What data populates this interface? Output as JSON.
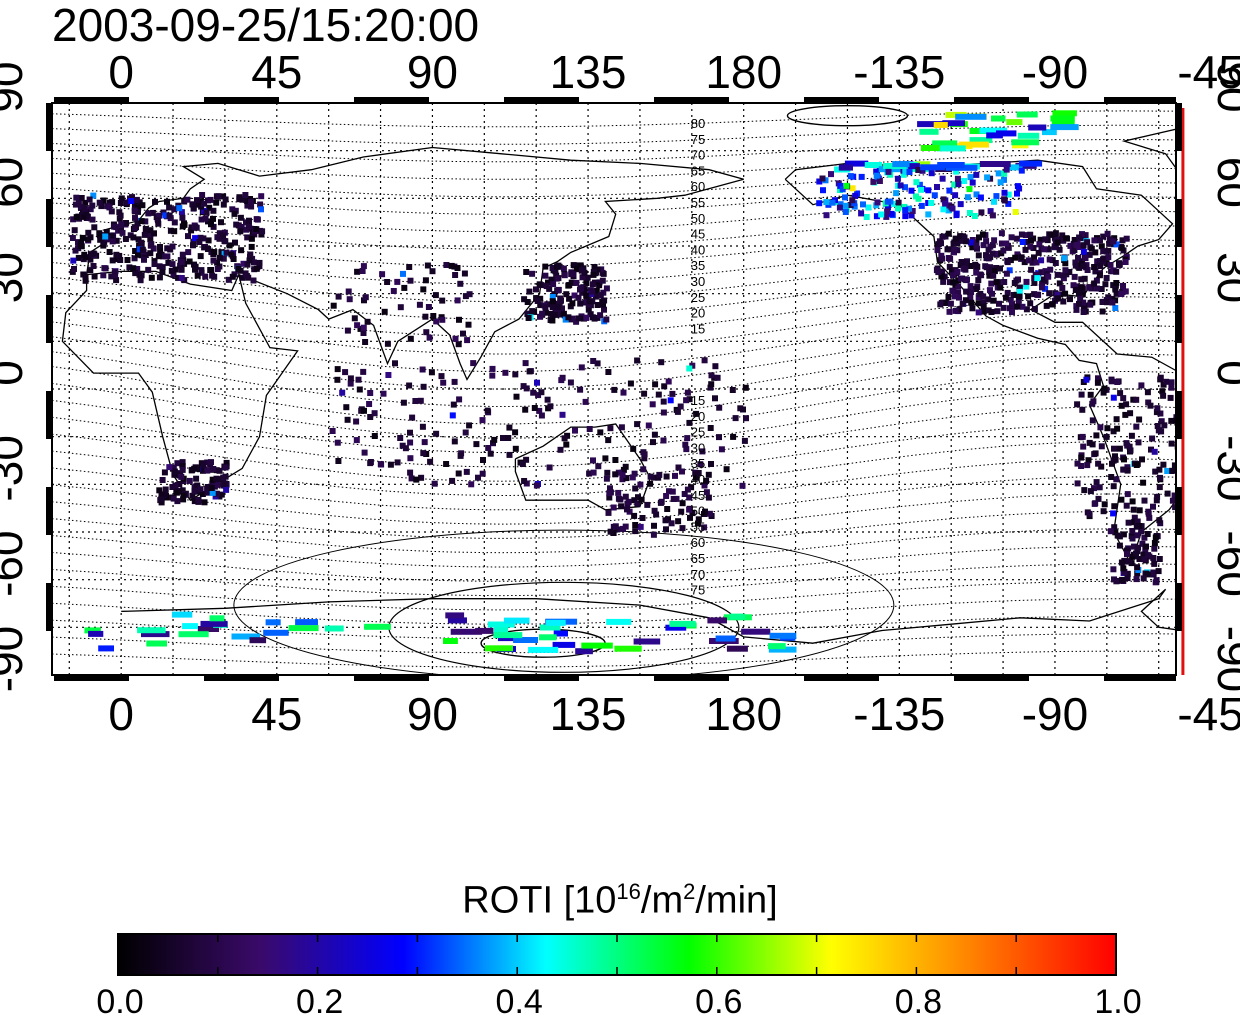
{
  "timestamp": "2003-09-25/15:20:00",
  "map": {
    "lon_ticks_top": [
      "0",
      "45",
      "90",
      "135",
      "180",
      "-135",
      "-90",
      "-45"
    ],
    "lon_ticks_bottom": [
      "0",
      "45",
      "90",
      "135",
      "180",
      "-135",
      "-90",
      "-45"
    ],
    "lat_ticks_left": [
      "90",
      "60",
      "30",
      "0",
      "-30",
      "-60",
      "-90"
    ],
    "lat_ticks_right": [
      "90",
      "60",
      "30",
      "0",
      "-30",
      "-60",
      "-90"
    ],
    "lon_range": [
      -20,
      305
    ],
    "lat_range": [
      -90,
      90
    ],
    "gridlines": true,
    "contour_labels_north": [
      "80",
      "75",
      "70",
      "65",
      "60",
      "55",
      "50",
      "45",
      "40",
      "35",
      "30",
      "25",
      "20",
      "15"
    ],
    "contour_labels_south": [
      "15",
      "20",
      "25",
      "30",
      "35",
      "40",
      "45",
      "50",
      "55",
      "60",
      "65",
      "70",
      "75"
    ],
    "marker_line": {
      "lon": -53,
      "color": "#e01010"
    }
  },
  "colorbar": {
    "title_prefix": "ROTI  [10",
    "title_exp1": "16",
    "title_mid": "/m",
    "title_exp2": "2",
    "title_suffix": "/min]",
    "ticks": [
      "0.0",
      "0.2",
      "0.4",
      "0.6",
      "0.8",
      "1.0"
    ],
    "range": [
      0,
      1
    ],
    "colors": [
      "#000000",
      "#3a0a6a",
      "#0000ff",
      "#00ffff",
      "#00ff00",
      "#ffff00",
      "#ff8000",
      "#ff0000"
    ]
  }
}
